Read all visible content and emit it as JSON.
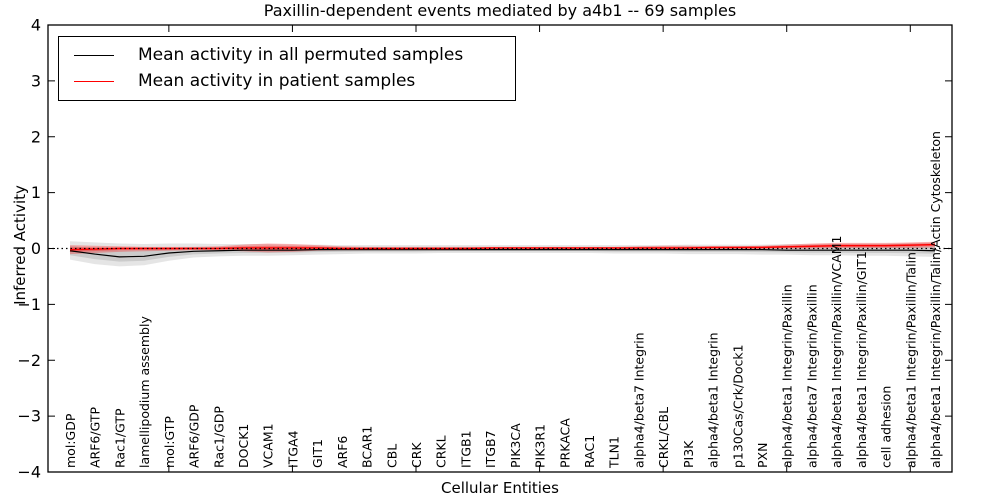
{
  "title": "Paxillin-dependent events mediated by a4b1 -- 69 samples",
  "legend": {
    "entries": [
      {
        "label": "Mean activity in all permuted samples",
        "color": "#000000"
      },
      {
        "label": "Mean activity in patient samples",
        "color": "#ff0000"
      }
    ]
  },
  "chart_data": {
    "type": "line",
    "title": "Paxillin-dependent events mediated by a4b1 -- 69 samples",
    "xlabel": "Cellular Entities",
    "ylabel": "Inferred Activity",
    "ylim": [
      -4,
      4
    ],
    "yticks": [
      4,
      3,
      2,
      1,
      0,
      -1,
      -2,
      -3,
      -4
    ],
    "yticklabels": [
      "4",
      "3",
      "2",
      "1",
      "0",
      "−1",
      "−2",
      "−3",
      "−4"
    ],
    "x_numeric_ticks": [
      5,
      10,
      15,
      20,
      25,
      30,
      35
    ],
    "grid": false,
    "legend_position": "upper left",
    "zero_line": {
      "style": "dotted",
      "color": "#000000",
      "y": 0
    },
    "categories": [
      "mol:GDP",
      "ARF6/GTP",
      "Rac1/GTP",
      "lamellipodium assembly",
      "mol:GTP",
      "ARF6/GDP",
      "Rac1/GDP",
      "DOCK1",
      "VCAM1",
      "ITGA4",
      "GIT1",
      "ARF6",
      "BCAR1",
      "CBL",
      "CRK",
      "CRKL",
      "ITGB1",
      "ITGB7",
      "PIK3CA",
      "PIK3R1",
      "PRKACA",
      "RAC1",
      "TLN1",
      "alpha4/beta7 Integrin",
      "CRKL/CBL",
      "PI3K",
      "alpha4/beta1 Integrin",
      "p130Cas/Crk/Dock1",
      "PXN",
      "alpha4/beta1 Integrin/Paxillin",
      "alpha4/beta7 Integrin/Paxillin",
      "alpha4/beta1 Integrin/Paxillin/VCAM1",
      "alpha4/beta1 Integrin/Paxillin/GIT1",
      "cell adhesion",
      "alpha4/beta1 Integrin/Paxillin/Talin",
      "alpha4/beta1 Integrin/Paxillin/Talin/Actin Cytoskeleton"
    ],
    "series": [
      {
        "name": "Mean activity in all permuted samples",
        "color": "#000000",
        "values": [
          -0.04,
          -0.1,
          -0.15,
          -0.14,
          -0.08,
          -0.05,
          -0.04,
          -0.03,
          -0.03,
          -0.03,
          -0.02,
          -0.02,
          -0.02,
          -0.02,
          -0.02,
          -0.02,
          -0.02,
          -0.02,
          -0.02,
          -0.02,
          -0.02,
          -0.02,
          -0.02,
          -0.02,
          -0.02,
          -0.02,
          -0.02,
          -0.02,
          -0.02,
          -0.03,
          -0.03,
          -0.03,
          -0.03,
          -0.03,
          -0.03,
          -0.04
        ]
      },
      {
        "name": "Mean activity in patient samples",
        "color": "#ff0000",
        "values": [
          -0.02,
          -0.01,
          0,
          0,
          0,
          0,
          0,
          0.01,
          0.01,
          0.01,
          0.01,
          0,
          0,
          0,
          0,
          0,
          0,
          0.01,
          0.01,
          0.01,
          0.01,
          0.01,
          0.01,
          0.01,
          0.01,
          0.01,
          0.02,
          0.02,
          0.02,
          0.03,
          0.04,
          0.05,
          0.05,
          0.05,
          0.06,
          0.07
        ]
      }
    ],
    "bands": [
      {
        "name": "permuted-samples-spread",
        "color": "#000000",
        "opacity": 0.1,
        "upper": [
          0.13,
          0.11,
          0.09,
          0.08,
          0.09,
          0.09,
          0.08,
          0.08,
          0.08,
          0.07,
          0.07,
          0.06,
          0.06,
          0.06,
          0.06,
          0.06,
          0.06,
          0.06,
          0.06,
          0.06,
          0.06,
          0.06,
          0.06,
          0.06,
          0.06,
          0.07,
          0.07,
          0.07,
          0.07,
          0.08,
          0.08,
          0.09,
          0.09,
          0.09,
          0.1,
          0.11
        ],
        "lower": [
          -0.2,
          -0.28,
          -0.32,
          -0.3,
          -0.22,
          -0.16,
          -0.14,
          -0.13,
          -0.13,
          -0.12,
          -0.11,
          -0.1,
          -0.09,
          -0.09,
          -0.09,
          -0.08,
          -0.08,
          -0.08,
          -0.08,
          -0.08,
          -0.08,
          -0.08,
          -0.09,
          -0.09,
          -0.09,
          -0.1,
          -0.1,
          -0.1,
          -0.11,
          -0.11,
          -0.12,
          -0.12,
          -0.13,
          -0.13,
          -0.14,
          -0.15
        ]
      },
      {
        "name": "patient-samples-spread",
        "color": "#ff0000",
        "opacity": 0.28,
        "upper": [
          0.06,
          0.05,
          0.04,
          0.03,
          0.03,
          0.03,
          0.04,
          0.07,
          0.09,
          0.08,
          0.06,
          0.04,
          0.03,
          0.03,
          0.03,
          0.03,
          0.03,
          0.03,
          0.03,
          0.03,
          0.03,
          0.03,
          0.03,
          0.04,
          0.05,
          0.05,
          0.04,
          0.04,
          0.05,
          0.07,
          0.09,
          0.1,
          0.1,
          0.1,
          0.11,
          0.12
        ],
        "lower": [
          -0.1,
          -0.08,
          -0.06,
          -0.05,
          -0.04,
          -0.03,
          -0.03,
          -0.05,
          -0.07,
          -0.06,
          -0.04,
          -0.03,
          -0.03,
          -0.02,
          -0.02,
          -0.02,
          -0.02,
          -0.02,
          -0.02,
          -0.02,
          -0.02,
          -0.02,
          -0.02,
          -0.02,
          -0.02,
          -0.02,
          -0.01,
          -0.01,
          -0.01,
          0,
          0,
          0.01,
          0.01,
          0.01,
          0.01,
          0.02
        ]
      }
    ]
  }
}
